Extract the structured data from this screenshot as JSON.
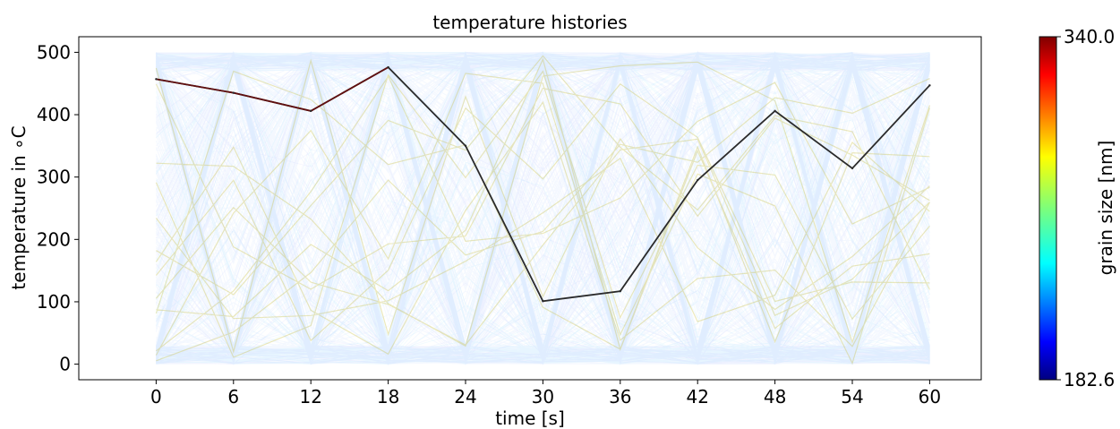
{
  "chart_data": {
    "type": "line",
    "title": "temperature histories",
    "xlabel": "time [s]",
    "ylabel": "temperature in ∘C",
    "x_ticks": [
      "0",
      "6",
      "12",
      "18",
      "24",
      "30",
      "36",
      "42",
      "48",
      "54",
      "60"
    ],
    "y_ticks": [
      "0",
      "100",
      "200",
      "300",
      "400",
      "500"
    ],
    "xlim": [
      -6,
      64
    ],
    "ylim": [
      -25,
      525
    ],
    "grid": false,
    "colorbar": {
      "label": "grain size [nm]",
      "min_label": "182.6",
      "max_label": "340.0",
      "min": 182.6,
      "max": 340.0,
      "colormap": "jet"
    },
    "series": [
      {
        "x": [
          0,
          6,
          12,
          18,
          24,
          30,
          36,
          42,
          48,
          54,
          60
        ],
        "y": [
          457,
          435,
          406,
          476,
          350,
          101,
          117,
          295,
          406,
          314,
          447
        ],
        "color_value": 340.0
      }
    ],
    "background_ensemble": {
      "description_count": 1200,
      "range": [
        0,
        500
      ],
      "dominant_color": "#1f6fff"
    }
  }
}
